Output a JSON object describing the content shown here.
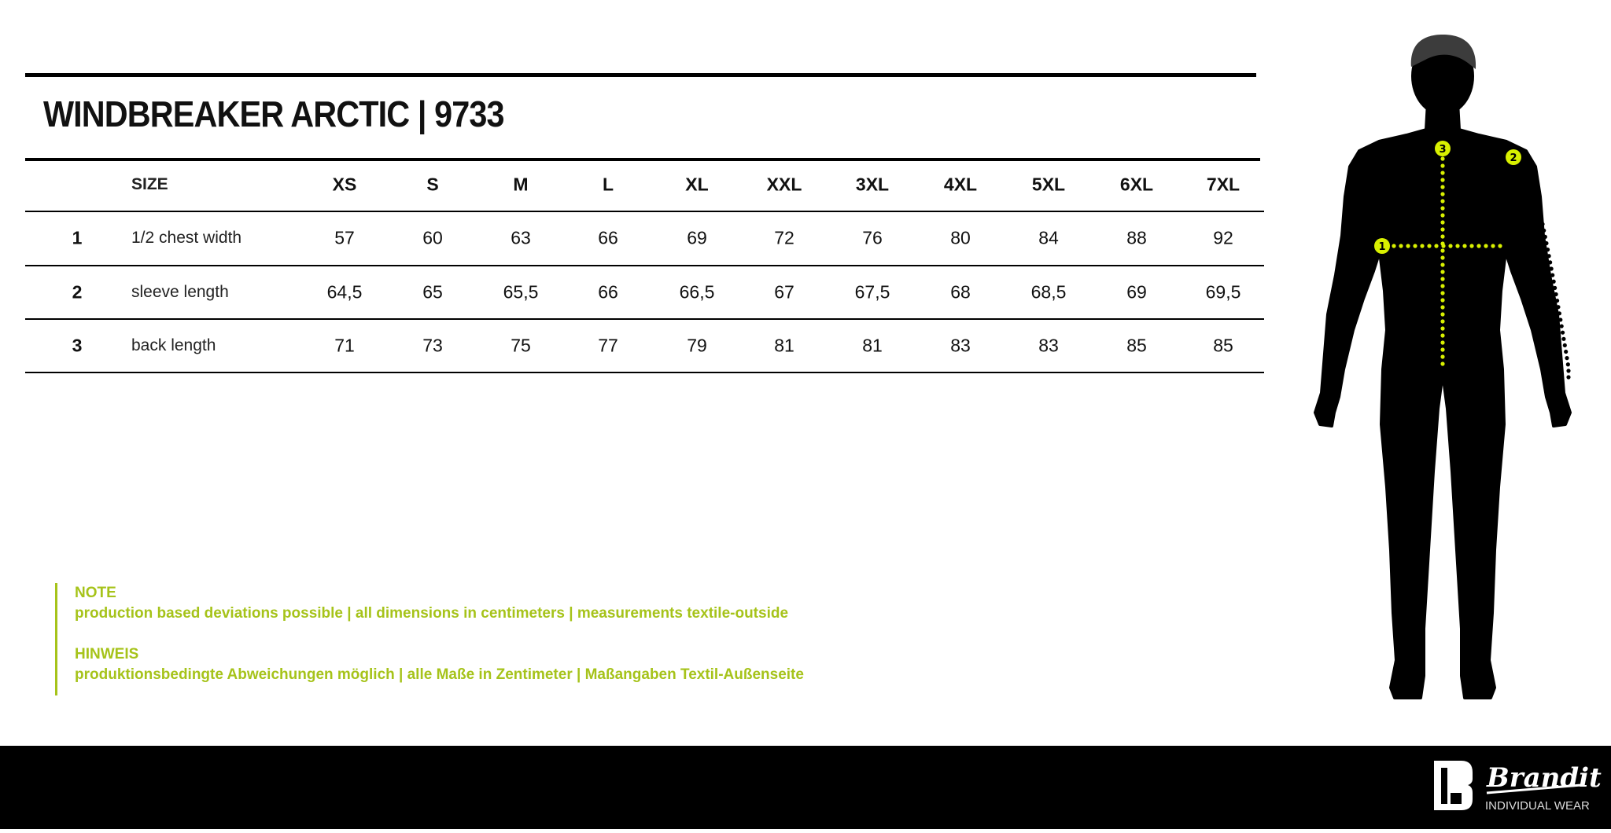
{
  "title": "WINDBREAKER ARCTIC | 9733",
  "table": {
    "size_label": "SIZE",
    "sizes": [
      "XS",
      "S",
      "M",
      "L",
      "XL",
      "XXL",
      "3XL",
      "4XL",
      "5XL",
      "6XL",
      "7XL"
    ],
    "rows": [
      {
        "num": "1",
        "label": "1/2 chest width",
        "values": [
          "57",
          "60",
          "63",
          "66",
          "69",
          "72",
          "76",
          "80",
          "84",
          "88",
          "92"
        ]
      },
      {
        "num": "2",
        "label": "sleeve length",
        "values": [
          "64,5",
          "65",
          "65,5",
          "66",
          "66,5",
          "67",
          "67,5",
          "68",
          "68,5",
          "69",
          "69,5"
        ]
      },
      {
        "num": "3",
        "label": "back length",
        "values": [
          "71",
          "73",
          "75",
          "77",
          "79",
          "81",
          "81",
          "83",
          "83",
          "85",
          "85"
        ]
      }
    ]
  },
  "notes": {
    "en_heading": "NOTE",
    "en_text": "production based deviations possible | all dimensions in centimeters | measurements textile-outside",
    "de_heading": "HINWEIS",
    "de_text": "produktionsbedingte Abweichungen möglich | alle Maße in Zentimeter | Maßangaben Textil-Außenseite"
  },
  "figure": {
    "markers": [
      "1",
      "2",
      "3"
    ],
    "icon": "body-silhouette-icon"
  },
  "brand": {
    "name": "Brandit",
    "tagline": "INDIVIDUAL WEAR"
  },
  "colors": {
    "accent": "#a6c31a",
    "text": "#111111",
    "footer": "#000000"
  }
}
